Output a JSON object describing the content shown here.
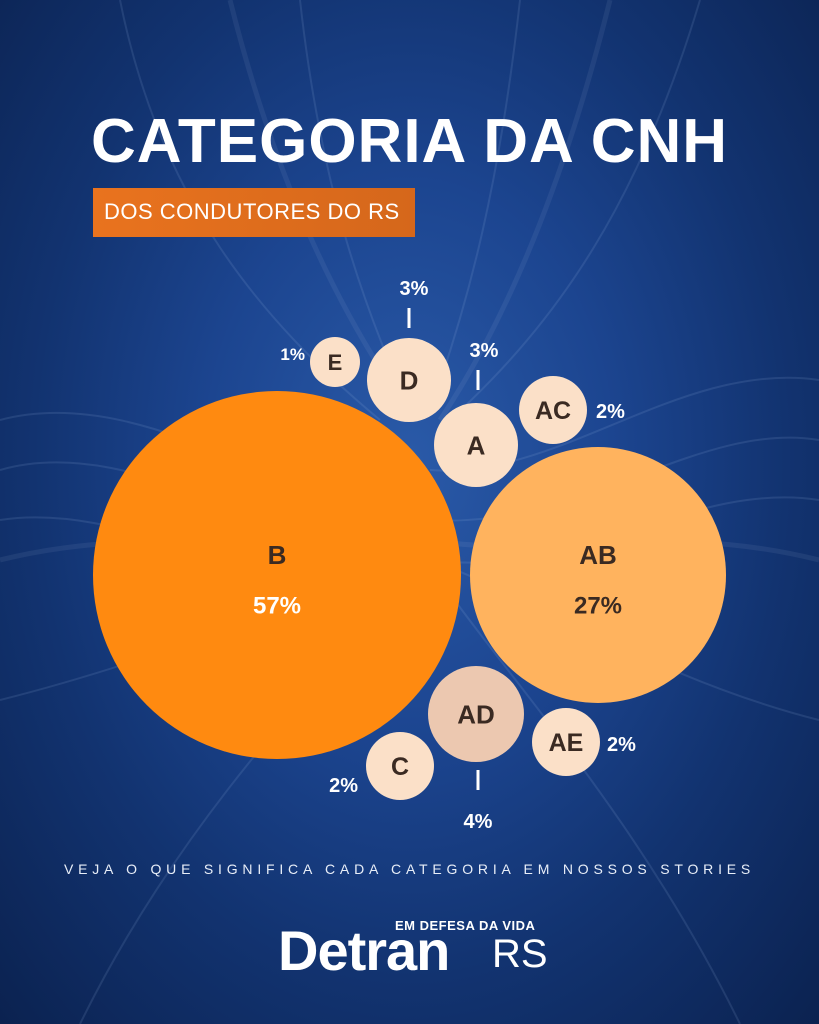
{
  "header": {
    "title": "CATEGORIA DA CNH",
    "subtitle": "DOS CONDUTORES DO RS"
  },
  "colors": {
    "accent_orange": "#e9731e",
    "bubble_large": "#ff8a10",
    "bubble_medium": "#ffb35e",
    "bubble_small": "#fbe0c8",
    "bubble_ad": "#ecc8b0",
    "label_dark": "#3a2a22",
    "background": "#173d85"
  },
  "chart_data": {
    "type": "bubble",
    "title": "CATEGORIA DA CNH",
    "subtitle": "DOS CONDUTORES DO RS",
    "unit": "%",
    "series": [
      {
        "category": "B",
        "value": 57,
        "label": "57%"
      },
      {
        "category": "AB",
        "value": 27,
        "label": "27%"
      },
      {
        "category": "AD",
        "value": 4,
        "label": "4%"
      },
      {
        "category": "D",
        "value": 3,
        "label": "3%"
      },
      {
        "category": "A",
        "value": 3,
        "label": "3%"
      },
      {
        "category": "AC",
        "value": 2,
        "label": "2%"
      },
      {
        "category": "AE",
        "value": 2,
        "label": "2%"
      },
      {
        "category": "C",
        "value": 2,
        "label": "2%"
      },
      {
        "category": "E",
        "value": 1,
        "label": "1%"
      }
    ]
  },
  "footer": {
    "note": "VEJA O QUE SIGNIFICA CADA CATEGORIA EM NOSSOS STORIES"
  },
  "brand": {
    "tagline": "EM DEFESA DA VIDA",
    "name": "Detran",
    "suffix": "RS"
  }
}
